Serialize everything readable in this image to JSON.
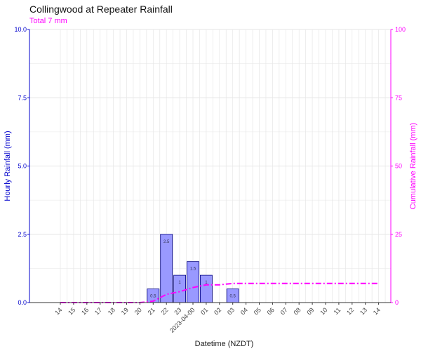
{
  "title": "Collingwood at Repeater Rainfall",
  "subtitle": "Total 7 mm",
  "colors": {
    "bar_fill": "#9999ff",
    "bar_stroke": "#000080",
    "left_axis": "#0000cc",
    "right_axis": "#ff00ff",
    "cumulative_line": "#ff00ff",
    "grid": "#e6e6e6"
  },
  "chart_data": {
    "type": "bar",
    "title": "Collingwood at Repeater Rainfall",
    "subtitle": "Total 7 mm",
    "xlabel": "Datetime (NZDT)",
    "ylabel": "Hourly Rainfall (mm)",
    "y2label": "Cumulative Rainfall (mm)",
    "ylim": [
      0,
      10
    ],
    "y2lim": [
      0,
      100
    ],
    "yticks": [
      "0.0",
      "2.5",
      "5.0",
      "7.5",
      "10.0"
    ],
    "y2ticks": [
      "0",
      "25",
      "50",
      "75",
      "100"
    ],
    "grid": true,
    "categories": [
      "14",
      "15",
      "16",
      "17",
      "18",
      "19",
      "20",
      "21",
      "22",
      "23",
      "2023-04-00",
      "01",
      "02",
      "03",
      "04",
      "05",
      "06",
      "07",
      "08",
      "09",
      "10",
      "11",
      "12",
      "13",
      "14"
    ],
    "series": [
      {
        "type": "bar",
        "axis": "left",
        "values": [
          0,
          0,
          0,
          0,
          0,
          0,
          0,
          0.5,
          2.5,
          1,
          1.5,
          1,
          0,
          0.5,
          0,
          0,
          0,
          0,
          0,
          0,
          0,
          0,
          0,
          0,
          0
        ],
        "labels": [
          "",
          "",
          "",
          "",
          "",
          "",
          "",
          "0.5",
          "2.5",
          "1",
          "1.5",
          "1",
          "",
          "0.5",
          "",
          "",
          "",
          "",
          "",
          "",
          "",
          "",
          "",
          "",
          ""
        ]
      },
      {
        "type": "line",
        "axis": "right",
        "style": "dash-dot",
        "values": [
          0,
          0,
          0,
          0,
          0,
          0,
          0,
          0.5,
          3,
          4,
          5.5,
          6.5,
          6.5,
          7,
          7,
          7,
          7,
          7,
          7,
          7,
          7,
          7,
          7,
          7,
          7
        ]
      }
    ]
  }
}
